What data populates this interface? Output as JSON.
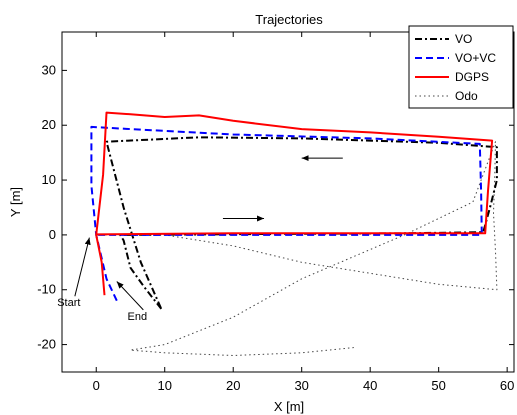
{
  "chart_data": {
    "type": "line",
    "title": "Trajectories",
    "xlabel": "X [m]",
    "ylabel": "Y [m]",
    "xlim": [
      -5,
      61
    ],
    "ylim": [
      -25,
      37
    ],
    "xticks": [
      0,
      10,
      20,
      30,
      40,
      50,
      60
    ],
    "yticks": [
      -20,
      -10,
      0,
      10,
      20,
      30
    ],
    "legend_position": "top-right",
    "series": [
      {
        "name": "VO",
        "color": "#000000",
        "style": "dash-dot",
        "points": [
          [
            9.5,
            -13.5
          ],
          [
            7,
            -9.5
          ],
          [
            5,
            -6
          ],
          [
            4,
            -1
          ],
          [
            3.5,
            0
          ],
          [
            30,
            0.2
          ],
          [
            45,
            0.3
          ],
          [
            56.5,
            0.5
          ],
          [
            57.5,
            5
          ],
          [
            58.5,
            10
          ],
          [
            58.5,
            16
          ],
          [
            50,
            16.8
          ],
          [
            30,
            17.6
          ],
          [
            15,
            17.8
          ],
          [
            1.5,
            17
          ],
          [
            4,
            5
          ],
          [
            6.5,
            -5
          ],
          [
            9.5,
            -13.5
          ]
        ]
      },
      {
        "name": "VO+VC",
        "color": "#0000ff",
        "style": "dashed",
        "points": [
          [
            3,
            -12
          ],
          [
            1.5,
            -8
          ],
          [
            0,
            0
          ],
          [
            -0.7,
            9
          ],
          [
            -0.7,
            19.7
          ],
          [
            5,
            19.3
          ],
          [
            20,
            18.3
          ],
          [
            40,
            17.6
          ],
          [
            56,
            16.6
          ],
          [
            56.2,
            8
          ],
          [
            56.3,
            0
          ],
          [
            40,
            0
          ],
          [
            20,
            0
          ],
          [
            0,
            0
          ]
        ]
      },
      {
        "name": "DGPS",
        "color": "#ff0000",
        "style": "solid",
        "points": [
          [
            1.2,
            -11
          ],
          [
            0.8,
            -5
          ],
          [
            0,
            0
          ],
          [
            1,
            11
          ],
          [
            1.5,
            22.3
          ],
          [
            5,
            22
          ],
          [
            10,
            21.5
          ],
          [
            15,
            21.8
          ],
          [
            20,
            20.8
          ],
          [
            30,
            19.3
          ],
          [
            40,
            18.7
          ],
          [
            50,
            17.9
          ],
          [
            57.8,
            17.2
          ],
          [
            57.2,
            8
          ],
          [
            56.8,
            0.3
          ],
          [
            40,
            0.3
          ],
          [
            20,
            0.3
          ],
          [
            0,
            0.1
          ]
        ]
      },
      {
        "name": "Odo",
        "color": "#444444",
        "style": "dotted",
        "points": [
          [
            0,
            0
          ],
          [
            10,
            0
          ],
          [
            20,
            -2
          ],
          [
            30,
            -5
          ],
          [
            40,
            -7
          ],
          [
            50,
            -9
          ],
          [
            58.5,
            -10
          ],
          [
            58.3,
            -3
          ],
          [
            58,
            4
          ],
          [
            58.2,
            11
          ],
          [
            58.3,
            17
          ],
          [
            55,
            6
          ],
          [
            45,
            0
          ],
          [
            30,
            -8
          ],
          [
            20,
            -15
          ],
          [
            10,
            -20
          ],
          [
            5,
            -21
          ],
          [
            10,
            -21.5
          ],
          [
            20,
            -22
          ],
          [
            30,
            -21.5
          ],
          [
            38,
            -20.5
          ]
        ]
      }
    ],
    "annotations": [
      {
        "text": "Start",
        "target": [
          -1,
          -0.5
        ],
        "label_pos": [
          -4,
          -13
        ]
      },
      {
        "text": "End",
        "target": [
          3,
          -8.5
        ],
        "label_pos": [
          6,
          -15.5
        ]
      }
    ],
    "arrows": [
      {
        "from": [
          36,
          14
        ],
        "to": [
          30,
          14
        ]
      },
      {
        "from": [
          18.5,
          3
        ],
        "to": [
          24.5,
          3
        ]
      }
    ]
  }
}
